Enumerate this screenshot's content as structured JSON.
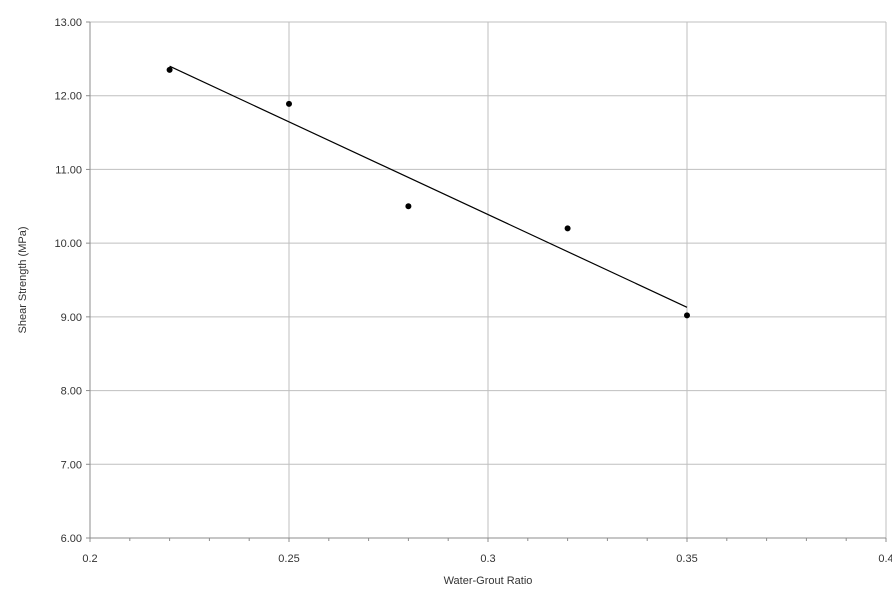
{
  "chart_data": {
    "type": "scatter",
    "title": "",
    "xlabel": "Water-Grout Ratio",
    "ylabel": "Shear Strength (MPa)",
    "xlim": [
      0.2,
      0.4
    ],
    "ylim": [
      6.0,
      13.0
    ],
    "x_ticks": [
      0.2,
      0.25,
      0.3,
      0.35,
      0.4
    ],
    "x_tick_labels": [
      "0.2",
      "0.25",
      "0.3",
      "0.35",
      "0.4"
    ],
    "y_ticks": [
      6,
      7,
      8,
      9,
      10,
      11,
      12,
      13
    ],
    "y_tick_labels": [
      "6.00",
      "7.00",
      "8.00",
      "9.00",
      "10.00",
      "11.00",
      "12.00",
      "13.00"
    ],
    "grid": "vertical major gridlines; horizontal major gridlines",
    "legend": "none",
    "series": [
      {
        "kind": "points",
        "x": [
          0.22,
          0.25,
          0.28,
          0.32,
          0.35
        ],
        "y": [
          12.35,
          11.89,
          10.5,
          10.2,
          9.02
        ],
        "color": "#000000"
      },
      {
        "kind": "trendline",
        "x": [
          0.22,
          0.35
        ],
        "y": [
          12.4,
          9.13
        ],
        "color": "#000000"
      }
    ],
    "colors": {
      "grid": "#bfbfbf",
      "axis": "#8c8c8c",
      "background": "#ffffff"
    }
  }
}
